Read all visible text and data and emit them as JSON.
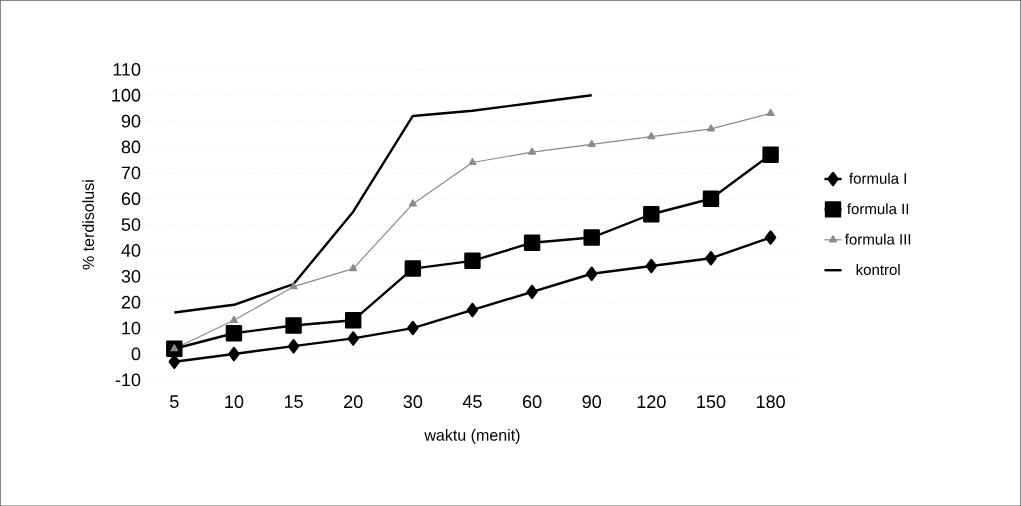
{
  "chart_data": {
    "type": "line",
    "xlabel": "waktu (menit)",
    "ylabel": "% terdisolusi",
    "categories": [
      "5",
      "10",
      "15",
      "20",
      "30",
      "45",
      "60",
      "90",
      "120",
      "150",
      "180"
    ],
    "series": [
      {
        "name": "formula I",
        "color": "#000000",
        "marker": "diamond",
        "values": [
          -3,
          0,
          3,
          6,
          10,
          17,
          24,
          31,
          34,
          37,
          45
        ]
      },
      {
        "name": "formula II",
        "color": "#000000",
        "marker": "square",
        "values": [
          2,
          8,
          11,
          13,
          33,
          36,
          43,
          45,
          54,
          60,
          77
        ]
      },
      {
        "name": "formula III",
        "color": "#8a8a8a",
        "marker": "triangle",
        "values": [
          2,
          13,
          26,
          33,
          58,
          74,
          78,
          81,
          84,
          87,
          93
        ]
      },
      {
        "name": "kontrol",
        "color": "#000000",
        "marker": "none",
        "values": [
          16,
          19,
          27,
          55,
          92,
          94,
          97,
          100,
          null,
          null,
          null
        ]
      }
    ],
    "ylim": [
      -10,
      110
    ],
    "yticks": [
      -10,
      0,
      10,
      20,
      30,
      40,
      50,
      60,
      70,
      80,
      90,
      100,
      110
    ],
    "grid": "y",
    "legend": "right",
    "line_style": "solid"
  }
}
